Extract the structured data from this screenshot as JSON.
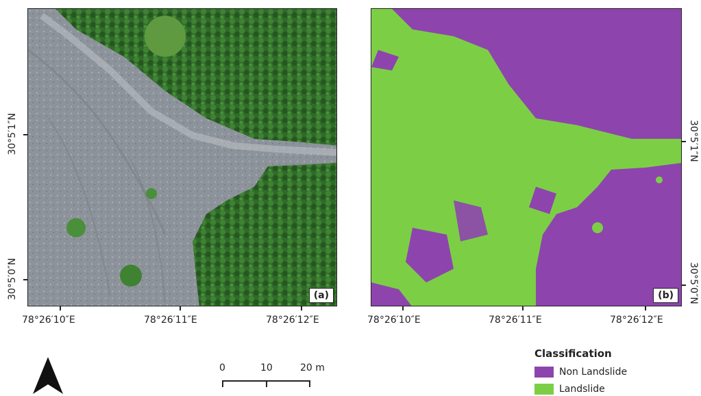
{
  "panels": {
    "a": {
      "label": "(a)",
      "lon_ticks": [
        "78°26′10″E",
        "78°26′11″E",
        "78°26′12″E"
      ],
      "lat_ticks": [
        "30°5′1″N",
        "30°5′0″N"
      ]
    },
    "b": {
      "label": "(b)",
      "lon_ticks": [
        "78°26′10″E",
        "78°26′11″E",
        "78°26′12″E"
      ],
      "lat_ticks": [
        "30°5′1″N",
        "30°5′0″N"
      ]
    }
  },
  "scalebar": {
    "labels": [
      "0",
      "10",
      "20 m"
    ]
  },
  "legend": {
    "title": "Classification",
    "items": [
      {
        "label": "Non Landslide",
        "color": "#8e44ad"
      },
      {
        "label": "Landslide",
        "color": "#7ccf45"
      }
    ]
  },
  "colors": {
    "forest": "#2f6b2a",
    "debris": "#8d939a",
    "non_landslide": "#8e44ad",
    "landslide": "#7ccf45"
  }
}
